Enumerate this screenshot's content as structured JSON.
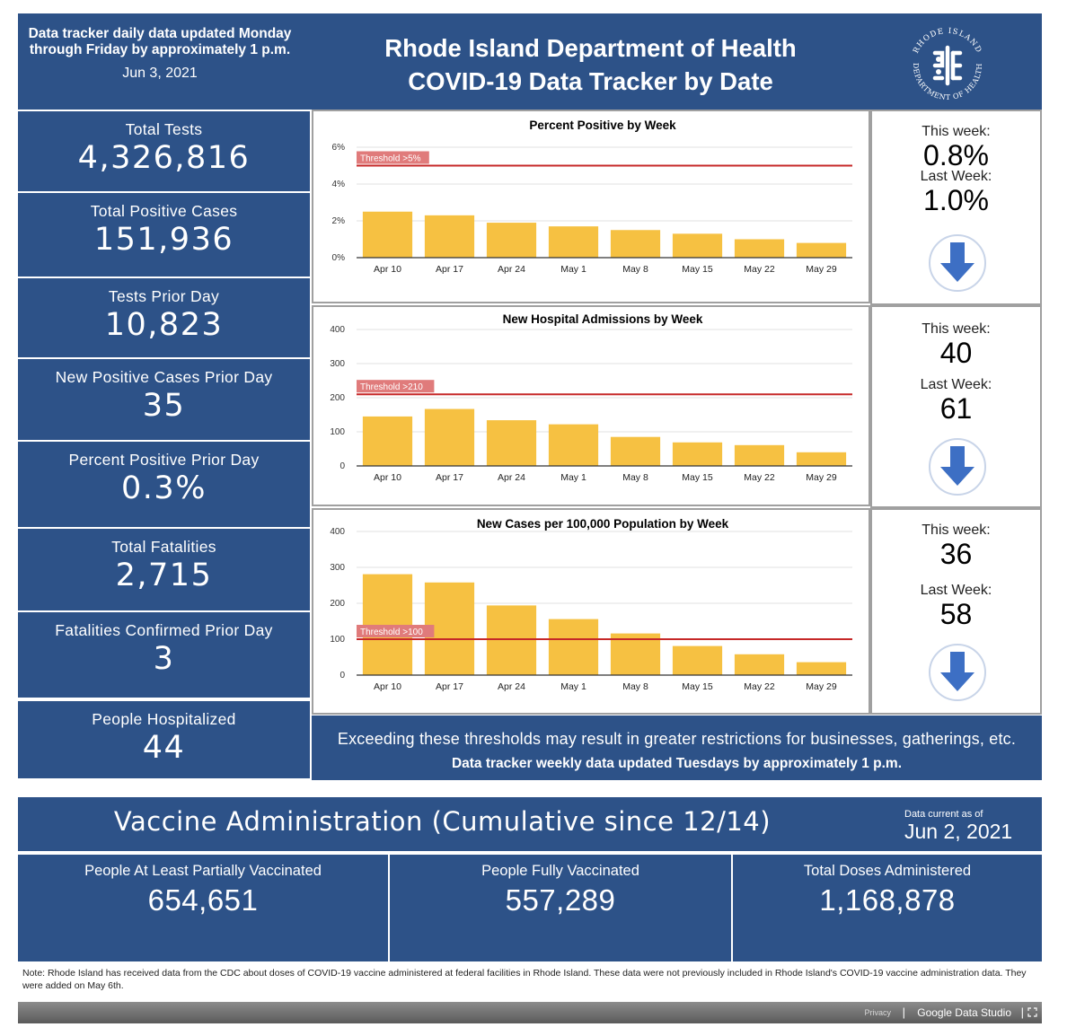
{
  "header": {
    "update_note": "Data tracker daily data updated Monday through Friday by approximately 1 p.m.",
    "date": "Jun 3, 2021",
    "title_line1": "Rhode Island Department of Health",
    "title_line2": "COVID-19 Data Tracker by Date",
    "logo_text_top": "RHODE ISLAND",
    "logo_text_bottom": "DEPARTMENT OF HEALTH"
  },
  "stats": [
    {
      "label": "Total Tests",
      "value": "4,326,816"
    },
    {
      "label": "Total Positive Cases",
      "value": "151,936"
    },
    {
      "label": "Tests Prior Day",
      "value": "10,823"
    },
    {
      "label": "New Positive Cases Prior Day",
      "value": "35"
    },
    {
      "label": "Percent Positive Prior Day",
      "value": "0.3%"
    },
    {
      "label": "Total Fatalities",
      "value": "2,715"
    },
    {
      "label": "Fatalities Confirmed Prior Day",
      "value": "3"
    },
    {
      "label": "People Hospitalized",
      "value": "44"
    }
  ],
  "weekly": [
    {
      "this_week_label": "This week:",
      "this_week": "0.8%",
      "last_week_label": "Last Week:",
      "last_week": "1.0%",
      "trend_icon": "arrow-down-icon"
    },
    {
      "this_week_label": "This week:",
      "this_week": "40",
      "last_week_label": "Last Week:",
      "last_week": "61",
      "trend_icon": "arrow-down-icon"
    },
    {
      "this_week_label": "This week:",
      "this_week": "36",
      "last_week_label": "Last Week:",
      "last_week": "58",
      "trend_icon": "arrow-down-icon"
    }
  ],
  "colors": {
    "navy": "#2d5288",
    "bar": "#f6c142",
    "threshold": "#c62828",
    "arrow": "#3d6fc4"
  },
  "chart_data": [
    {
      "type": "bar",
      "title": "Percent Positive by Week",
      "categories": [
        "Apr 10",
        "Apr 17",
        "Apr 24",
        "May 1",
        "May 8",
        "May 15",
        "May 22",
        "May 29"
      ],
      "values": [
        2.5,
        2.3,
        1.9,
        1.7,
        1.5,
        1.3,
        1.0,
        0.8
      ],
      "ylim": [
        0,
        6
      ],
      "yticks": [
        0,
        2,
        4,
        6
      ],
      "ytick_labels": [
        "0%",
        "2%",
        "4%",
        "6%"
      ],
      "threshold": 5,
      "threshold_label": "Threshold >5%",
      "grid": true
    },
    {
      "type": "bar",
      "title": "New Hospital Admissions by Week",
      "categories": [
        "Apr 10",
        "Apr 17",
        "Apr 24",
        "May 1",
        "May 8",
        "May 15",
        "May 22",
        "May 29"
      ],
      "values": [
        145,
        167,
        134,
        122,
        85,
        69,
        61,
        40
      ],
      "ylim": [
        0,
        400
      ],
      "yticks": [
        0,
        100,
        200,
        300,
        400
      ],
      "ytick_labels": [
        "0",
        "100",
        "200",
        "300",
        "400"
      ],
      "threshold": 210,
      "threshold_label": "Threshold >210",
      "grid": true
    },
    {
      "type": "bar",
      "title": "New Cases per 100,000 Population by Week",
      "categories": [
        "Apr 10",
        "Apr 17",
        "Apr 24",
        "May 1",
        "May 8",
        "May 15",
        "May 22",
        "May 29"
      ],
      "values": [
        281,
        258,
        194,
        156,
        116,
        81,
        58,
        36
      ],
      "ylim": [
        0,
        400
      ],
      "yticks": [
        0,
        100,
        200,
        300,
        400
      ],
      "ytick_labels": [
        "0",
        "100",
        "200",
        "300",
        "400"
      ],
      "threshold": 100,
      "threshold_label": "Threshold >100",
      "grid": true
    }
  ],
  "threshold_note": "Exceeding these thresholds may result in greater restrictions for businesses, gatherings, etc.",
  "weekly_update_note": "Data tracker weekly data updated Tuesdays by approximately 1 p.m.",
  "vaccine": {
    "title": "Vaccine Administration (Cumulative since 12/14)",
    "as_of_label": "Data current as of",
    "as_of_date": "Jun 2, 2021",
    "tiles": [
      {
        "label": "People At Least Partially Vaccinated",
        "value": "654,651"
      },
      {
        "label": "People Fully Vaccinated",
        "value": "557,289"
      },
      {
        "label": "Total Doses Administered",
        "value": "1,168,878"
      }
    ]
  },
  "note": "Note: Rhode Island has received data from the CDC about doses of COVID-19 vaccine administered at federal facilities in Rhode Island. These data were not previously included in Rhode Island's COVID-19 vaccine administration data. They were added on May 6th.",
  "footer": {
    "privacy": "Privacy",
    "separator": "|",
    "brand": "Google Data Studio"
  }
}
